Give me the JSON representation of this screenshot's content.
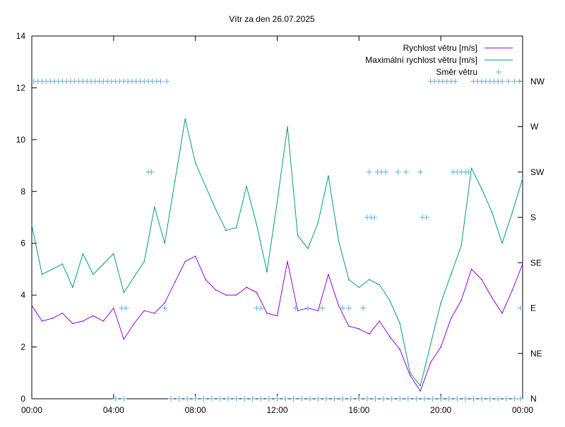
{
  "chart_data": {
    "type": "line",
    "title": "Vítr za den 26.07.2025",
    "xlabel": "",
    "ylabel": "",
    "x_unit": "hours",
    "xlim": [
      0,
      24
    ],
    "ylim": [
      0,
      14
    ],
    "x_ticks": [
      {
        "value": 0,
        "label": "00:00"
      },
      {
        "value": 4,
        "label": "04:00"
      },
      {
        "value": 8,
        "label": "08:00"
      },
      {
        "value": 12,
        "label": "12:00"
      },
      {
        "value": 16,
        "label": "16:00"
      },
      {
        "value": 20,
        "label": "20:00"
      },
      {
        "value": 24,
        "label": "00:00"
      }
    ],
    "y_ticks": [
      0,
      2,
      4,
      6,
      8,
      10,
      12,
      14
    ],
    "y2_ticks": [
      {
        "value": 0,
        "label": "N"
      },
      {
        "value": 1,
        "label": "NE"
      },
      {
        "value": 2,
        "label": "E"
      },
      {
        "value": 3,
        "label": "SE"
      },
      {
        "value": 4,
        "label": "S"
      },
      {
        "value": 5,
        "label": "SW"
      },
      {
        "value": 6,
        "label": "W"
      },
      {
        "value": 7,
        "label": "NW"
      }
    ],
    "y2lim": [
      0,
      8
    ],
    "grid": false,
    "legend_position": "top-right",
    "series": [
      {
        "name": "Rychlost větru [m/s]",
        "color": "#9400d3",
        "style": "line",
        "axis": "y",
        "x": [
          0,
          0.5,
          1,
          1.5,
          2,
          2.5,
          3,
          3.5,
          4,
          4.5,
          5,
          5.5,
          6,
          6.5,
          7,
          7.5,
          8,
          8.5,
          9,
          9.5,
          10,
          10.5,
          11,
          11.5,
          12,
          12.5,
          13,
          13.5,
          14,
          14.5,
          15,
          15.5,
          16,
          16.5,
          17,
          17.5,
          18,
          18.5,
          19,
          19.5,
          20,
          20.5,
          21,
          21.5,
          22,
          22.5,
          23,
          23.5,
          24
        ],
        "values": [
          3.6,
          3.0,
          3.1,
          3.3,
          2.9,
          3.0,
          3.2,
          3.0,
          3.5,
          2.3,
          2.9,
          3.4,
          3.3,
          3.7,
          4.5,
          5.3,
          5.5,
          4.6,
          4.2,
          4.0,
          4.0,
          4.3,
          4.1,
          3.3,
          3.2,
          5.3,
          3.4,
          3.5,
          3.4,
          4.8,
          3.6,
          2.8,
          2.7,
          2.5,
          3.0,
          2.4,
          1.9,
          0.9,
          0.3,
          1.4,
          2.0,
          3.1,
          3.8,
          5.0,
          4.6,
          3.9,
          3.3,
          4.2,
          5.2
        ]
      },
      {
        "name": "Maximální rychlost větru [m/s]",
        "color": "#009e73",
        "style": "line",
        "axis": "y",
        "x": [
          0,
          0.5,
          1,
          1.5,
          2,
          2.5,
          3,
          3.5,
          4,
          4.5,
          5,
          5.5,
          6,
          6.5,
          7,
          7.5,
          8,
          8.5,
          9,
          9.5,
          10,
          10.5,
          11,
          11.5,
          12,
          12.5,
          13,
          13.5,
          14,
          14.5,
          15,
          15.5,
          16,
          16.5,
          17,
          17.5,
          18,
          18.5,
          19,
          19.5,
          20,
          20.5,
          21,
          21.5,
          22,
          22.5,
          23,
          23.5,
          24
        ],
        "values": [
          6.7,
          4.8,
          5.0,
          5.2,
          4.3,
          5.6,
          4.8,
          5.2,
          5.6,
          4.1,
          4.7,
          5.3,
          7.4,
          6.0,
          8.4,
          10.8,
          9.1,
          8.2,
          7.3,
          6.5,
          6.6,
          8.2,
          6.7,
          4.9,
          7.6,
          10.5,
          6.3,
          5.8,
          6.8,
          8.6,
          6.1,
          4.6,
          4.3,
          4.6,
          4.4,
          3.8,
          2.9,
          1.0,
          0.5,
          2.1,
          3.7,
          4.8,
          5.9,
          8.9,
          8.1,
          7.2,
          6.0,
          7.2,
          8.5
        ]
      },
      {
        "name": "Směr větru",
        "color": "#56b4e9",
        "style": "points",
        "marker": "+",
        "axis": "y2",
        "points": [
          {
            "x": 0.1,
            "dir": 7
          },
          {
            "x": 0.3,
            "dir": 7
          },
          {
            "x": 0.5,
            "dir": 7
          },
          {
            "x": 0.7,
            "dir": 7
          },
          {
            "x": 0.9,
            "dir": 7
          },
          {
            "x": 1.1,
            "dir": 7
          },
          {
            "x": 1.3,
            "dir": 7
          },
          {
            "x": 1.5,
            "dir": 7
          },
          {
            "x": 1.7,
            "dir": 7
          },
          {
            "x": 1.9,
            "dir": 7
          },
          {
            "x": 2.1,
            "dir": 7
          },
          {
            "x": 2.3,
            "dir": 7
          },
          {
            "x": 2.5,
            "dir": 7
          },
          {
            "x": 2.7,
            "dir": 7
          },
          {
            "x": 2.9,
            "dir": 7
          },
          {
            "x": 3.1,
            "dir": 7
          },
          {
            "x": 3.3,
            "dir": 7
          },
          {
            "x": 3.5,
            "dir": 7
          },
          {
            "x": 3.7,
            "dir": 7
          },
          {
            "x": 3.9,
            "dir": 7
          },
          {
            "x": 4.1,
            "dir": 7
          },
          {
            "x": 4.3,
            "dir": 7
          },
          {
            "x": 4.5,
            "dir": 7
          },
          {
            "x": 4.7,
            "dir": 7
          },
          {
            "x": 4.9,
            "dir": 7
          },
          {
            "x": 5.1,
            "dir": 7
          },
          {
            "x": 5.3,
            "dir": 7
          },
          {
            "x": 5.5,
            "dir": 7
          },
          {
            "x": 5.7,
            "dir": 7
          },
          {
            "x": 5.9,
            "dir": 7
          },
          {
            "x": 6.1,
            "dir": 7
          },
          {
            "x": 6.3,
            "dir": 7
          },
          {
            "x": 6.6,
            "dir": 7
          },
          {
            "x": 4.4,
            "dir": 2
          },
          {
            "x": 4.6,
            "dir": 2
          },
          {
            "x": 5.7,
            "dir": 5
          },
          {
            "x": 5.85,
            "dir": 5
          },
          {
            "x": 6.5,
            "dir": 2
          },
          {
            "x": 4.1,
            "dir": 0
          },
          {
            "x": 4.5,
            "dir": 0
          },
          {
            "x": 6.8,
            "dir": 0
          },
          {
            "x": 7.2,
            "dir": 0
          },
          {
            "x": 7.6,
            "dir": 0
          },
          {
            "x": 8.0,
            "dir": 0
          },
          {
            "x": 8.4,
            "dir": 0
          },
          {
            "x": 8.8,
            "dir": 0
          },
          {
            "x": 9.2,
            "dir": 0
          },
          {
            "x": 9.6,
            "dir": 0
          },
          {
            "x": 10.0,
            "dir": 0
          },
          {
            "x": 10.4,
            "dir": 0
          },
          {
            "x": 10.8,
            "dir": 0
          },
          {
            "x": 11.2,
            "dir": 0
          },
          {
            "x": 11.6,
            "dir": 0
          },
          {
            "x": 12.0,
            "dir": 0
          },
          {
            "x": 12.4,
            "dir": 0
          },
          {
            "x": 12.8,
            "dir": 0
          },
          {
            "x": 13.2,
            "dir": 0
          },
          {
            "x": 13.6,
            "dir": 0
          },
          {
            "x": 14.0,
            "dir": 0
          },
          {
            "x": 14.4,
            "dir": 0
          },
          {
            "x": 14.8,
            "dir": 0
          },
          {
            "x": 15.2,
            "dir": 0
          },
          {
            "x": 15.6,
            "dir": 0
          },
          {
            "x": 16.0,
            "dir": 0
          },
          {
            "x": 16.4,
            "dir": 0
          },
          {
            "x": 16.8,
            "dir": 0
          },
          {
            "x": 17.2,
            "dir": 0
          },
          {
            "x": 17.6,
            "dir": 0
          },
          {
            "x": 18.0,
            "dir": 0
          },
          {
            "x": 18.4,
            "dir": 0
          },
          {
            "x": 18.8,
            "dir": 0
          },
          {
            "x": 19.2,
            "dir": 0
          },
          {
            "x": 19.6,
            "dir": 0
          },
          {
            "x": 20.0,
            "dir": 0
          },
          {
            "x": 20.4,
            "dir": 0
          },
          {
            "x": 20.8,
            "dir": 0
          },
          {
            "x": 21.2,
            "dir": 0
          },
          {
            "x": 21.6,
            "dir": 0
          },
          {
            "x": 22.0,
            "dir": 0
          },
          {
            "x": 22.4,
            "dir": 0
          },
          {
            "x": 22.8,
            "dir": 0
          },
          {
            "x": 23.2,
            "dir": 0
          },
          {
            "x": 23.6,
            "dir": 0
          },
          {
            "x": 23.9,
            "dir": 0
          },
          {
            "x": 11.0,
            "dir": 2
          },
          {
            "x": 11.2,
            "dir": 2
          },
          {
            "x": 12.9,
            "dir": 2
          },
          {
            "x": 13.5,
            "dir": 2
          },
          {
            "x": 14.2,
            "dir": 2
          },
          {
            "x": 15.2,
            "dir": 2
          },
          {
            "x": 15.5,
            "dir": 2
          },
          {
            "x": 16.2,
            "dir": 2
          },
          {
            "x": 16.5,
            "dir": 5
          },
          {
            "x": 16.9,
            "dir": 5
          },
          {
            "x": 17.1,
            "dir": 5
          },
          {
            "x": 17.3,
            "dir": 5
          },
          {
            "x": 17.9,
            "dir": 5
          },
          {
            "x": 18.3,
            "dir": 5
          },
          {
            "x": 19.0,
            "dir": 5
          },
          {
            "x": 16.4,
            "dir": 4
          },
          {
            "x": 16.6,
            "dir": 4
          },
          {
            "x": 16.75,
            "dir": 4
          },
          {
            "x": 19.1,
            "dir": 4
          },
          {
            "x": 19.3,
            "dir": 4
          },
          {
            "x": 19.5,
            "dir": 7
          },
          {
            "x": 19.7,
            "dir": 7
          },
          {
            "x": 19.9,
            "dir": 7
          },
          {
            "x": 20.1,
            "dir": 7
          },
          {
            "x": 20.3,
            "dir": 7
          },
          {
            "x": 20.5,
            "dir": 7
          },
          {
            "x": 20.7,
            "dir": 7
          },
          {
            "x": 20.6,
            "dir": 5
          },
          {
            "x": 20.8,
            "dir": 5
          },
          {
            "x": 21.0,
            "dir": 5
          },
          {
            "x": 21.2,
            "dir": 5
          },
          {
            "x": 21.35,
            "dir": 5
          },
          {
            "x": 21.6,
            "dir": 7
          },
          {
            "x": 21.8,
            "dir": 7
          },
          {
            "x": 22.0,
            "dir": 7
          },
          {
            "x": 22.2,
            "dir": 7
          },
          {
            "x": 22.4,
            "dir": 7
          },
          {
            "x": 22.6,
            "dir": 7
          },
          {
            "x": 22.8,
            "dir": 7
          },
          {
            "x": 23.0,
            "dir": 7
          },
          {
            "x": 23.3,
            "dir": 7
          },
          {
            "x": 23.6,
            "dir": 7
          },
          {
            "x": 23.85,
            "dir": 7
          },
          {
            "x": 23.9,
            "dir": 2
          }
        ]
      }
    ]
  }
}
